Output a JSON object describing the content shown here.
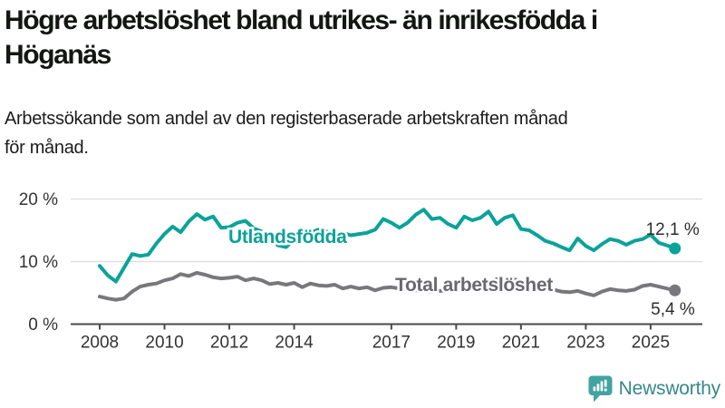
{
  "header": {
    "title_lines": [
      "Högre arbetslöshet bland utrikes- än inrikesfödda i",
      "Höganäs"
    ],
    "subtitle_lines": [
      "Arbetssökande som andel av den registerbaserade arbetskraften månad",
      "för månad."
    ]
  },
  "footer": {
    "brand": "Newsworthy",
    "brand_icon": "bar-chart-speech-bubble-icon",
    "brand_color": "#35898b",
    "icon_color": "#42a3a1"
  },
  "chart_data": {
    "type": "line",
    "unit": "%",
    "x_axis": {
      "ticks": [
        2008,
        2010,
        2012,
        2014,
        2017,
        2019,
        2021,
        2023,
        2025
      ],
      "range": [
        2008,
        2025.75
      ]
    },
    "y_axis": {
      "tick_labels": [
        "20 %",
        "10 %",
        "0 %"
      ],
      "tick_values": [
        20,
        10,
        0
      ],
      "ylim": [
        0,
        20
      ],
      "grid": true
    },
    "colors": {
      "grid": "#dcdcdc",
      "axis": "#4a4a4a",
      "tick_text": "#333333",
      "value_label_text": "#2d2d2d"
    },
    "series": [
      {
        "name": "Total arbetslöshet",
        "color": "#78787c",
        "label_color": "#69696e",
        "end_label": "5,4 %",
        "end_value": 5.4,
        "points": [
          [
            2008,
            4.4
          ],
          [
            2008.25,
            4.1
          ],
          [
            2008.5,
            3.9
          ],
          [
            2008.75,
            4.1
          ],
          [
            2009,
            5.2
          ],
          [
            2009.25,
            6.0
          ],
          [
            2009.5,
            6.3
          ],
          [
            2009.75,
            6.5
          ],
          [
            2010,
            7.0
          ],
          [
            2010.25,
            7.3
          ],
          [
            2010.5,
            8.0
          ],
          [
            2010.75,
            7.7
          ],
          [
            2011,
            8.2
          ],
          [
            2011.25,
            7.9
          ],
          [
            2011.5,
            7.5
          ],
          [
            2011.75,
            7.3
          ],
          [
            2012,
            7.4
          ],
          [
            2012.25,
            7.6
          ],
          [
            2012.5,
            7.0
          ],
          [
            2012.75,
            7.3
          ],
          [
            2013,
            7.0
          ],
          [
            2013.25,
            6.4
          ],
          [
            2013.5,
            6.6
          ],
          [
            2013.75,
            6.3
          ],
          [
            2014,
            6.6
          ],
          [
            2014.25,
            5.9
          ],
          [
            2014.5,
            6.5
          ],
          [
            2014.75,
            6.2
          ],
          [
            2015,
            6.1
          ],
          [
            2015.25,
            6.3
          ],
          [
            2015.5,
            5.7
          ],
          [
            2015.75,
            6.0
          ],
          [
            2016,
            5.7
          ],
          [
            2016.25,
            5.9
          ],
          [
            2016.5,
            5.4
          ],
          [
            2016.75,
            5.8
          ],
          [
            2017,
            5.9
          ],
          [
            2017.25,
            5.7
          ],
          [
            2017.5,
            5.6
          ],
          [
            2017.75,
            5.4
          ],
          [
            2018,
            5.4
          ],
          [
            2018.25,
            5.2
          ],
          [
            2018.5,
            5.3
          ],
          [
            2018.75,
            5.4
          ],
          [
            2019,
            5.5
          ],
          [
            2019.25,
            5.6
          ],
          [
            2019.5,
            5.8
          ],
          [
            2019.75,
            6.0
          ],
          [
            2020,
            6.3
          ],
          [
            2020.25,
            7.2
          ],
          [
            2020.5,
            7.5
          ],
          [
            2020.75,
            7.2
          ],
          [
            2021,
            6.9
          ],
          [
            2021.25,
            6.4
          ],
          [
            2021.5,
            6.1
          ],
          [
            2021.75,
            5.8
          ],
          [
            2022,
            5.5
          ],
          [
            2022.25,
            5.2
          ],
          [
            2022.5,
            5.1
          ],
          [
            2022.75,
            5.3
          ],
          [
            2023,
            4.9
          ],
          [
            2023.25,
            4.6
          ],
          [
            2023.5,
            5.2
          ],
          [
            2023.75,
            5.6
          ],
          [
            2024,
            5.4
          ],
          [
            2024.25,
            5.3
          ],
          [
            2024.5,
            5.5
          ],
          [
            2024.75,
            6.1
          ],
          [
            2025,
            6.3
          ],
          [
            2025.25,
            6.0
          ],
          [
            2025.5,
            5.7
          ],
          [
            2025.75,
            5.4
          ]
        ]
      },
      {
        "name": "Utlandsfödda",
        "color": "#0ba29a",
        "label_color": "#0ba29a",
        "end_label": "12,1 %",
        "end_value": 12.1,
        "points": [
          [
            2008,
            9.3
          ],
          [
            2008.25,
            7.8
          ],
          [
            2008.5,
            6.8
          ],
          [
            2008.75,
            9.0
          ],
          [
            2009,
            11.2
          ],
          [
            2009.25,
            10.9
          ],
          [
            2009.5,
            11.1
          ],
          [
            2009.75,
            12.9
          ],
          [
            2010,
            14.4
          ],
          [
            2010.25,
            15.6
          ],
          [
            2010.5,
            14.7
          ],
          [
            2010.75,
            16.4
          ],
          [
            2011,
            17.6
          ],
          [
            2011.25,
            16.7
          ],
          [
            2011.5,
            17.2
          ],
          [
            2011.75,
            15.4
          ],
          [
            2012,
            15.5
          ],
          [
            2012.25,
            16.2
          ],
          [
            2012.5,
            16.5
          ],
          [
            2012.75,
            15.3
          ],
          [
            2013,
            14.8
          ],
          [
            2013.25,
            13.7
          ],
          [
            2013.5,
            12.6
          ],
          [
            2013.75,
            12.3
          ],
          [
            2014,
            13.5
          ],
          [
            2014.25,
            14.8
          ],
          [
            2014.5,
            14.6
          ],
          [
            2014.75,
            15.1
          ],
          [
            2015,
            14.8
          ],
          [
            2015.25,
            14.5
          ],
          [
            2015.5,
            14.6
          ],
          [
            2015.75,
            14.2
          ],
          [
            2016,
            14.4
          ],
          [
            2016.25,
            14.6
          ],
          [
            2016.5,
            15.1
          ],
          [
            2016.75,
            16.8
          ],
          [
            2017,
            16.2
          ],
          [
            2017.25,
            15.4
          ],
          [
            2017.5,
            16.2
          ],
          [
            2017.75,
            17.5
          ],
          [
            2018,
            18.3
          ],
          [
            2018.25,
            16.8
          ],
          [
            2018.5,
            17.0
          ],
          [
            2018.75,
            16.0
          ],
          [
            2019,
            15.4
          ],
          [
            2019.25,
            17.2
          ],
          [
            2019.5,
            16.6
          ],
          [
            2019.75,
            17.0
          ],
          [
            2020,
            18.0
          ],
          [
            2020.25,
            16.0
          ],
          [
            2020.5,
            17.0
          ],
          [
            2020.75,
            17.4
          ],
          [
            2021,
            15.2
          ],
          [
            2021.25,
            15.0
          ],
          [
            2021.5,
            14.2
          ],
          [
            2021.75,
            13.3
          ],
          [
            2022,
            12.9
          ],
          [
            2022.25,
            12.3
          ],
          [
            2022.5,
            11.8
          ],
          [
            2022.75,
            13.7
          ],
          [
            2023,
            12.5
          ],
          [
            2023.25,
            11.8
          ],
          [
            2023.5,
            12.8
          ],
          [
            2023.75,
            13.6
          ],
          [
            2024,
            13.3
          ],
          [
            2024.25,
            12.7
          ],
          [
            2024.5,
            13.3
          ],
          [
            2024.75,
            13.6
          ],
          [
            2025,
            14.3
          ],
          [
            2025.25,
            13.0
          ],
          [
            2025.5,
            12.6
          ],
          [
            2025.75,
            12.1
          ]
        ]
      }
    ]
  }
}
